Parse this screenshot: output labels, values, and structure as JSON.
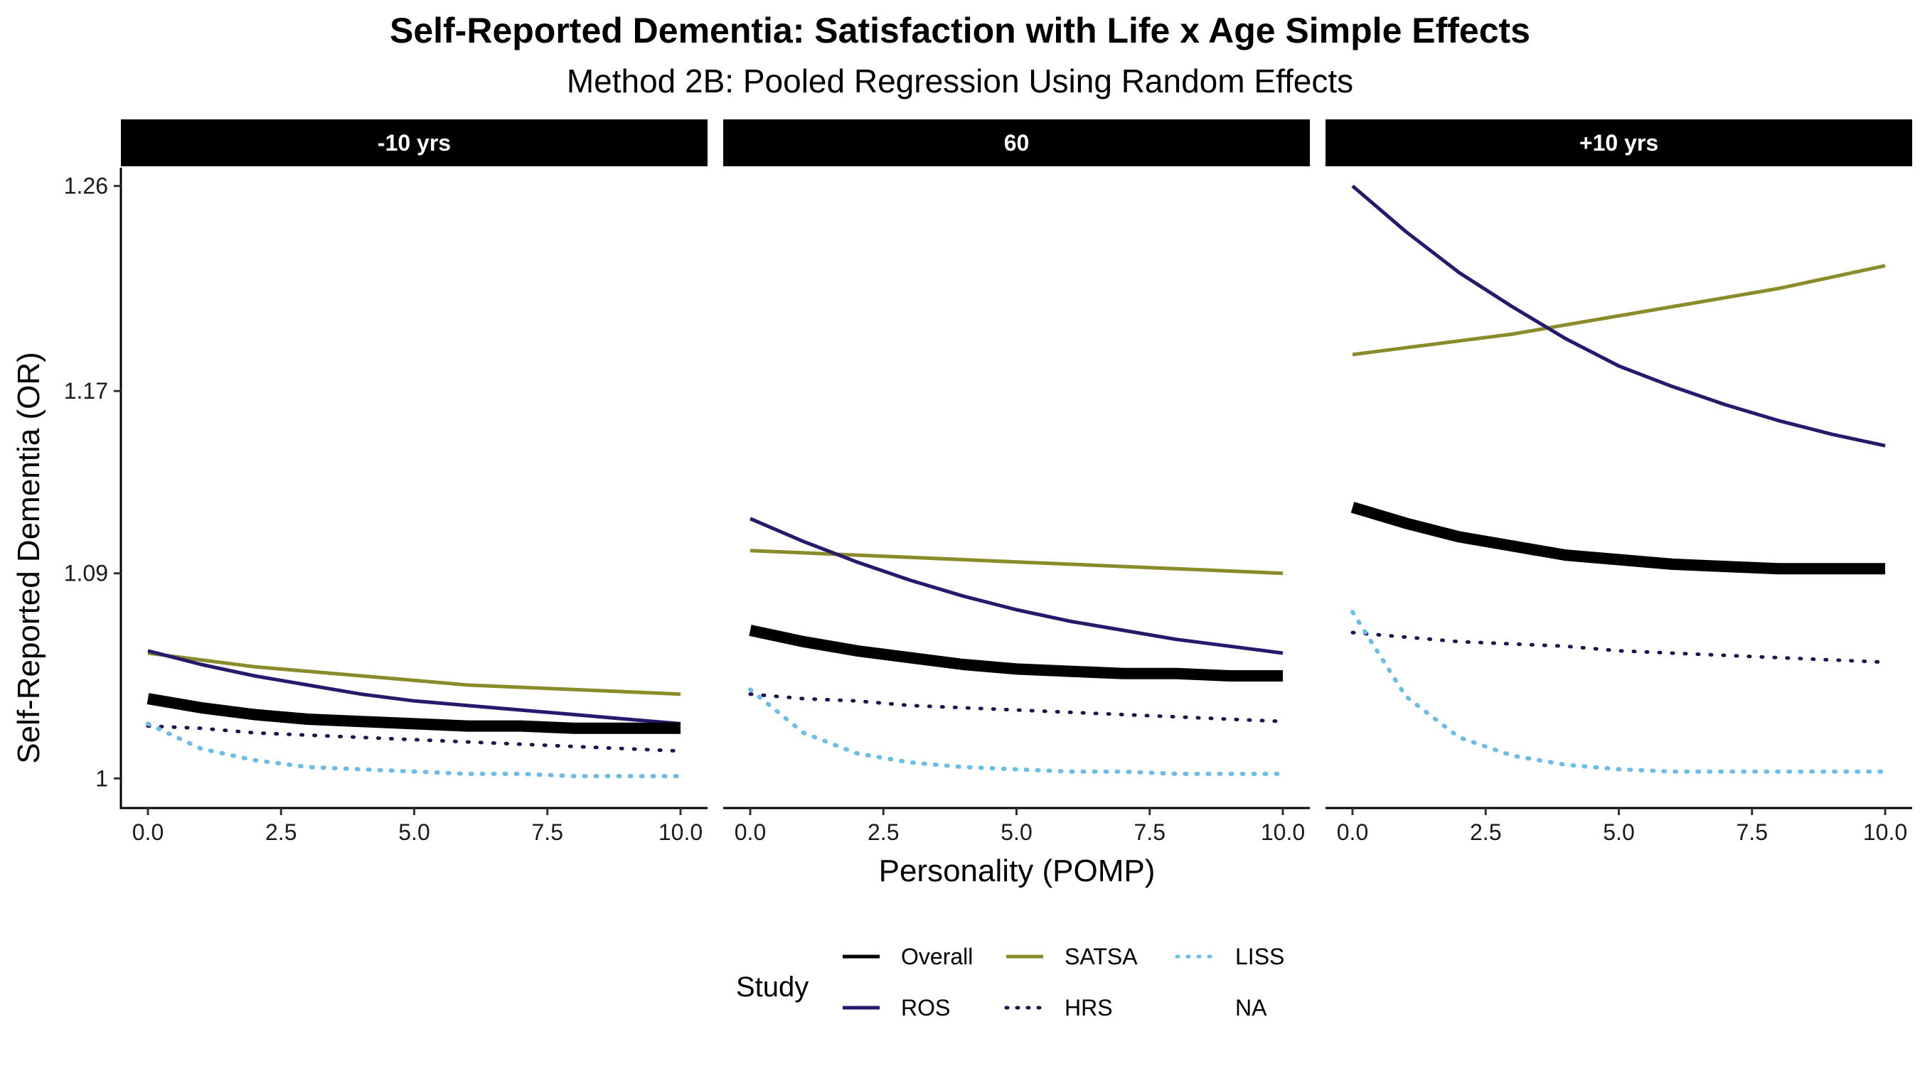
{
  "chart_data": {
    "type": "line",
    "title": "Self-Reported Dementia: Satisfaction with Life x Age Simple Effects",
    "subtitle": "Method 2B: Pooled Regression Using Random Effects",
    "xlabel": "Personality (POMP)",
    "ylabel": "Self-Reported Dementia (OR)",
    "xlim": [
      0,
      10
    ],
    "ylim": [
      0.987,
      1.268
    ],
    "x_ticks": [
      "0.0",
      "2.5",
      "5.0",
      "7.5",
      "10.0"
    ],
    "y_ticks": [
      "1",
      "1.09",
      "1.17",
      "1.26"
    ],
    "y_tick_values": [
      1.0,
      1.09,
      1.17,
      1.26
    ],
    "grid": false,
    "legend_position": "bottom",
    "legend": {
      "title": "Study",
      "entries": [
        "Overall",
        "ROS",
        "SATSA",
        "HRS",
        "LISS",
        "NA"
      ]
    },
    "colors": {
      "Overall": "#000000",
      "ROS": "#271a6d",
      "SATSA": "#8b8b2b",
      "HRS": "#1b1450",
      "LISS": "#6cbde6",
      "strip_bg": "#000000"
    },
    "x": [
      0,
      1,
      2,
      3,
      4,
      5,
      6,
      7,
      8,
      9,
      10
    ],
    "panels": [
      {
        "label": "-10 yrs",
        "series": [
          {
            "name": "Overall",
            "values": [
              1.035,
              1.031,
              1.028,
              1.026,
              1.025,
              1.024,
              1.023,
              1.023,
              1.022,
              1.022,
              1.022
            ]
          },
          {
            "name": "ROS",
            "values": [
              1.056,
              1.05,
              1.045,
              1.041,
              1.037,
              1.034,
              1.032,
              1.03,
              1.028,
              1.026,
              1.024
            ]
          },
          {
            "name": "SATSA",
            "values": [
              1.055,
              1.052,
              1.049,
              1.047,
              1.045,
              1.043,
              1.041,
              1.04,
              1.039,
              1.038,
              1.037
            ]
          },
          {
            "name": "HRS",
            "values": [
              1.023,
              1.022,
              1.02,
              1.019,
              1.018,
              1.017,
              1.016,
              1.015,
              1.014,
              1.013,
              1.012
            ]
          },
          {
            "name": "LISS",
            "values": [
              1.024,
              1.013,
              1.008,
              1.005,
              1.004,
              1.003,
              1.002,
              1.002,
              1.001,
              1.001,
              1.001
            ]
          }
        ]
      },
      {
        "label": "60",
        "series": [
          {
            "name": "Overall",
            "values": [
              1.065,
              1.06,
              1.056,
              1.053,
              1.05,
              1.048,
              1.047,
              1.046,
              1.046,
              1.045,
              1.045
            ]
          },
          {
            "name": "ROS",
            "values": [
              1.114,
              1.104,
              1.095,
              1.087,
              1.08,
              1.074,
              1.069,
              1.065,
              1.061,
              1.058,
              1.055
            ]
          },
          {
            "name": "SATSA",
            "values": [
              1.1,
              1.099,
              1.098,
              1.097,
              1.096,
              1.095,
              1.094,
              1.093,
              1.092,
              1.091,
              1.09
            ]
          },
          {
            "name": "HRS",
            "values": [
              1.037,
              1.035,
              1.034,
              1.032,
              1.031,
              1.03,
              1.029,
              1.028,
              1.027,
              1.026,
              1.025
            ]
          },
          {
            "name": "LISS",
            "values": [
              1.039,
              1.02,
              1.011,
              1.007,
              1.005,
              1.004,
              1.003,
              1.003,
              1.002,
              1.002,
              1.002
            ]
          }
        ]
      },
      {
        "label": "+10 yrs",
        "series": [
          {
            "name": "Overall",
            "values": [
              1.119,
              1.112,
              1.106,
              1.102,
              1.098,
              1.096,
              1.094,
              1.093,
              1.092,
              1.092,
              1.092
            ]
          },
          {
            "name": "ROS",
            "values": [
              1.26,
              1.24,
              1.222,
              1.207,
              1.193,
              1.181,
              1.172,
              1.164,
              1.157,
              1.151,
              1.146
            ]
          },
          {
            "name": "SATSA",
            "values": [
              1.186,
              1.189,
              1.192,
              1.195,
              1.199,
              1.203,
              1.207,
              1.211,
              1.215,
              1.22,
              1.225
            ]
          },
          {
            "name": "HRS",
            "values": [
              1.064,
              1.062,
              1.06,
              1.059,
              1.058,
              1.056,
              1.055,
              1.054,
              1.053,
              1.052,
              1.051
            ]
          },
          {
            "name": "LISS",
            "values": [
              1.073,
              1.036,
              1.018,
              1.01,
              1.006,
              1.004,
              1.003,
              1.003,
              1.003,
              1.003,
              1.003
            ]
          }
        ]
      }
    ]
  }
}
